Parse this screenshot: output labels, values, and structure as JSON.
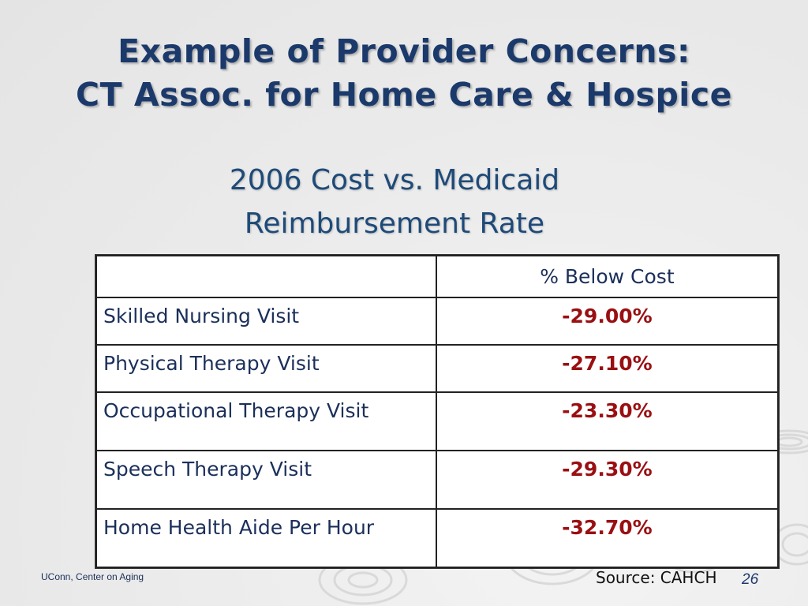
{
  "slide": {
    "title_line1": "Example of Provider Concerns:",
    "title_line2": "CT Assoc. for Home Care & Hospice",
    "subtitle_line1": "2006 Cost vs. Medicaid",
    "subtitle_line2": "Reimbursement Rate"
  },
  "table": {
    "header_label": "",
    "header_value": "% Below Cost",
    "rows": [
      {
        "label": "Skilled Nursing Visit",
        "value": "-29.00%"
      },
      {
        "label": "Physical Therapy Visit",
        "value": "-27.10%"
      },
      {
        "label": "Occupational Therapy Visit",
        "value": "-23.30%"
      },
      {
        "label": "Speech Therapy Visit",
        "value": "-29.30%"
      },
      {
        "label": "Home Health Aide Per Hour",
        "value": "-32.70%"
      }
    ]
  },
  "footer": {
    "organization": "UConn, Center on Aging",
    "source": "Source: CAHCH",
    "page_number": "26"
  },
  "colors": {
    "title": "#1b3a6b",
    "value_text": "#9a0f12",
    "background": "#ececec"
  }
}
